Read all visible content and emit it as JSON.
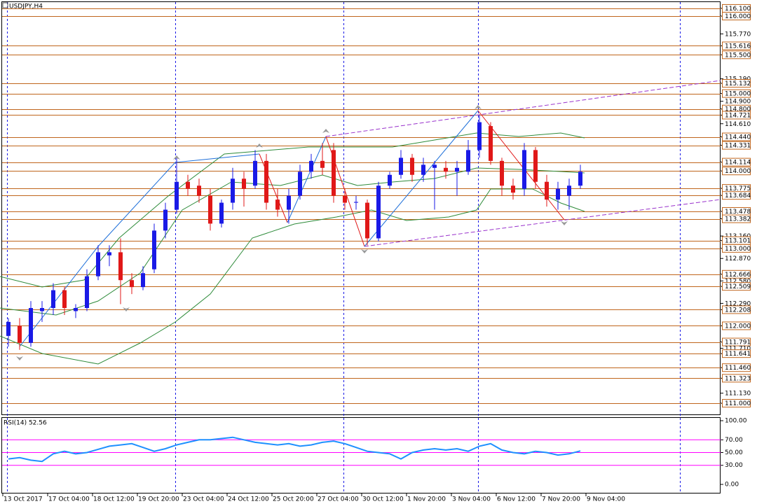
{
  "chart_data": {
    "type": "candlestick",
    "title": "USDJPY,H4",
    "open": [
      111.87,
      112.0,
      111.78,
      112.19,
      112.23,
      112.46,
      112.19,
      112.23,
      112.64,
      112.91,
      112.95,
      112.59,
      112.5,
      112.73,
      113.23,
      113.5,
      113.86,
      113.81,
      113.68,
      113.32,
      113.59,
      113.9,
      113.81,
      114.13,
      113.63,
      113.5,
      113.68,
      113.99,
      114.13,
      114.27,
      113.68,
      113.59,
      113.59,
      113.13,
      113.81,
      113.95,
      114.17,
      113.95,
      114.04,
      114.04,
      113.99,
      113.99,
      114.27,
      114.58,
      114.13,
      113.81,
      113.77,
      114.27,
      113.86,
      113.63,
      113.68,
      113.81
    ],
    "high": [
      112.1,
      112.1,
      112.32,
      112.32,
      112.55,
      112.5,
      112.28,
      112.73,
      113.04,
      113.04,
      113.13,
      112.68,
      112.77,
      113.32,
      113.59,
      114.17,
      113.95,
      113.9,
      113.77,
      113.63,
      114.04,
      113.99,
      114.27,
      114.22,
      113.77,
      113.77,
      114.08,
      114.22,
      114.36,
      114.36,
      113.77,
      113.68,
      113.63,
      113.86,
      113.99,
      114.27,
      114.22,
      114.17,
      114.13,
      114.13,
      114.13,
      114.4,
      114.72,
      114.63,
      114.17,
      113.9,
      114.36,
      114.31,
      113.95,
      113.86,
      113.9,
      114.08
    ],
    "low": [
      111.73,
      111.69,
      111.73,
      112.05,
      112.14,
      112.14,
      112.1,
      112.19,
      112.59,
      112.77,
      112.28,
      112.41,
      112.46,
      112.68,
      113.13,
      113.45,
      113.68,
      113.59,
      113.23,
      113.27,
      113.5,
      113.54,
      113.77,
      113.5,
      113.41,
      113.32,
      113.63,
      113.9,
      113.95,
      113.59,
      113.5,
      113.5,
      113.04,
      113.09,
      113.77,
      113.9,
      113.86,
      113.86,
      113.5,
      113.9,
      113.68,
      113.95,
      114.17,
      114.08,
      113.68,
      113.63,
      113.68,
      113.77,
      113.54,
      113.5,
      113.5,
      113.77
    ],
    "close": [
      112.05,
      111.78,
      112.23,
      112.23,
      112.46,
      112.23,
      112.23,
      112.64,
      112.95,
      112.95,
      112.59,
      112.5,
      112.68,
      113.23,
      113.5,
      113.86,
      113.77,
      113.68,
      113.32,
      113.59,
      113.9,
      113.77,
      114.13,
      113.59,
      113.5,
      113.68,
      113.99,
      114.13,
      114.04,
      113.68,
      113.59,
      113.6,
      113.13,
      113.81,
      113.95,
      114.17,
      113.95,
      114.08,
      114.08,
      113.99,
      114.04,
      114.27,
      114.63,
      114.13,
      113.81,
      113.72,
      114.27,
      113.86,
      113.63,
      113.77,
      113.81,
      113.99
    ],
    "up_color": "#1a1ae6",
    "down_color": "#e01818",
    "level_color": "#c0651c",
    "ylim": [
      110.856,
      116.208
    ],
    "yticks": [
      {
        "value": 116.1,
        "label": "116.100"
      },
      {
        "value": 116.0,
        "label": "116.000"
      },
      {
        "value": 115.77,
        "label": "115.770"
      },
      {
        "value": 115.616,
        "label": "115.616"
      },
      {
        "value": 115.5,
        "label": "115.500"
      },
      {
        "value": 115.19,
        "label": "115.190"
      },
      {
        "value": 115.132,
        "label": "115.132"
      },
      {
        "value": 115.0,
        "label": "115.000"
      },
      {
        "value": 114.9,
        "label": "114.900"
      },
      {
        "value": 114.8,
        "label": "114.800"
      },
      {
        "value": 114.721,
        "label": "114.721"
      },
      {
        "value": 114.61,
        "label": "114.610"
      },
      {
        "value": 114.44,
        "label": "114.440"
      },
      {
        "value": 114.331,
        "label": "114.331"
      },
      {
        "value": 114.114,
        "label": "114.114"
      },
      {
        "value": 114.0,
        "label": "114.000"
      },
      {
        "value": 113.775,
        "label": "113.775"
      },
      {
        "value": 113.684,
        "label": "113.684"
      },
      {
        "value": 113.478,
        "label": "113.478"
      },
      {
        "value": 113.382,
        "label": "113.382"
      },
      {
        "value": 113.16,
        "label": "113.160"
      },
      {
        "value": 113.101,
        "label": "113.101"
      },
      {
        "value": 113.0,
        "label": "113.000"
      },
      {
        "value": 112.87,
        "label": "112.870"
      },
      {
        "value": 112.666,
        "label": "112.666"
      },
      {
        "value": 112.58,
        "label": "112.580"
      },
      {
        "value": 112.509,
        "label": "112.509"
      },
      {
        "value": 112.29,
        "label": "112.290"
      },
      {
        "value": 112.208,
        "label": "112.208"
      },
      {
        "value": 112.0,
        "label": "112.000"
      },
      {
        "value": 111.791,
        "label": "111.791"
      },
      {
        "value": 111.71,
        "label": "111.710"
      },
      {
        "value": 111.641,
        "label": "111.641"
      },
      {
        "value": 111.46,
        "label": "111.460"
      },
      {
        "value": 111.323,
        "label": "111.323"
      },
      {
        "value": 111.13,
        "label": "111.130"
      },
      {
        "value": 111.0,
        "label": "111.000"
      }
    ],
    "levels": [
      116.1,
      116.0,
      115.616,
      115.5,
      115.132,
      115.0,
      114.8,
      114.721,
      114.44,
      114.331,
      114.114,
      114.0,
      113.775,
      113.684,
      113.478,
      113.382,
      113.101,
      113.0,
      112.666,
      112.509,
      112.208,
      112.0,
      111.791,
      111.641,
      111.46,
      111.323,
      111.0
    ],
    "x_labels": [
      "13 Oct 2017",
      "17 Oct 04:00",
      "18 Oct 12:00",
      "19 Oct 20:00",
      "23 Oct 04:00",
      "24 Oct 12:00",
      "25 Oct 20:00",
      "27 Oct 04:00",
      "30 Oct 12:00",
      "1 Nov 20:00",
      "3 Nov 04:00",
      "6 Nov 12:00",
      "7 Nov 20:00",
      "9 Nov 04:00"
    ],
    "rsi": {
      "title": "RSI(14) 52.56",
      "color": "#1e90ff",
      "level_color": "#ff00ff",
      "values": [
        40,
        42,
        38,
        36,
        48,
        52,
        48,
        50,
        55,
        60,
        62,
        64,
        58,
        52,
        56,
        62,
        66,
        70,
        70,
        72,
        74,
        70,
        66,
        64,
        62,
        64,
        60,
        62,
        66,
        68,
        64,
        58,
        52,
        50,
        48,
        40,
        50,
        54,
        56,
        54,
        56,
        52,
        60,
        64,
        54,
        50,
        48,
        52,
        50,
        46,
        48,
        52.56
      ],
      "ylim": [
        -14.3,
        105.5
      ],
      "yticks": [
        {
          "value": 100,
          "label": "100.00"
        },
        {
          "value": 70,
          "label": "70.00"
        },
        {
          "value": 50,
          "label": "50.00"
        },
        {
          "value": 30,
          "label": "30.00"
        },
        {
          "value": 0,
          "label": "0.00"
        }
      ],
      "levels": [
        70,
        50,
        30
      ]
    }
  }
}
